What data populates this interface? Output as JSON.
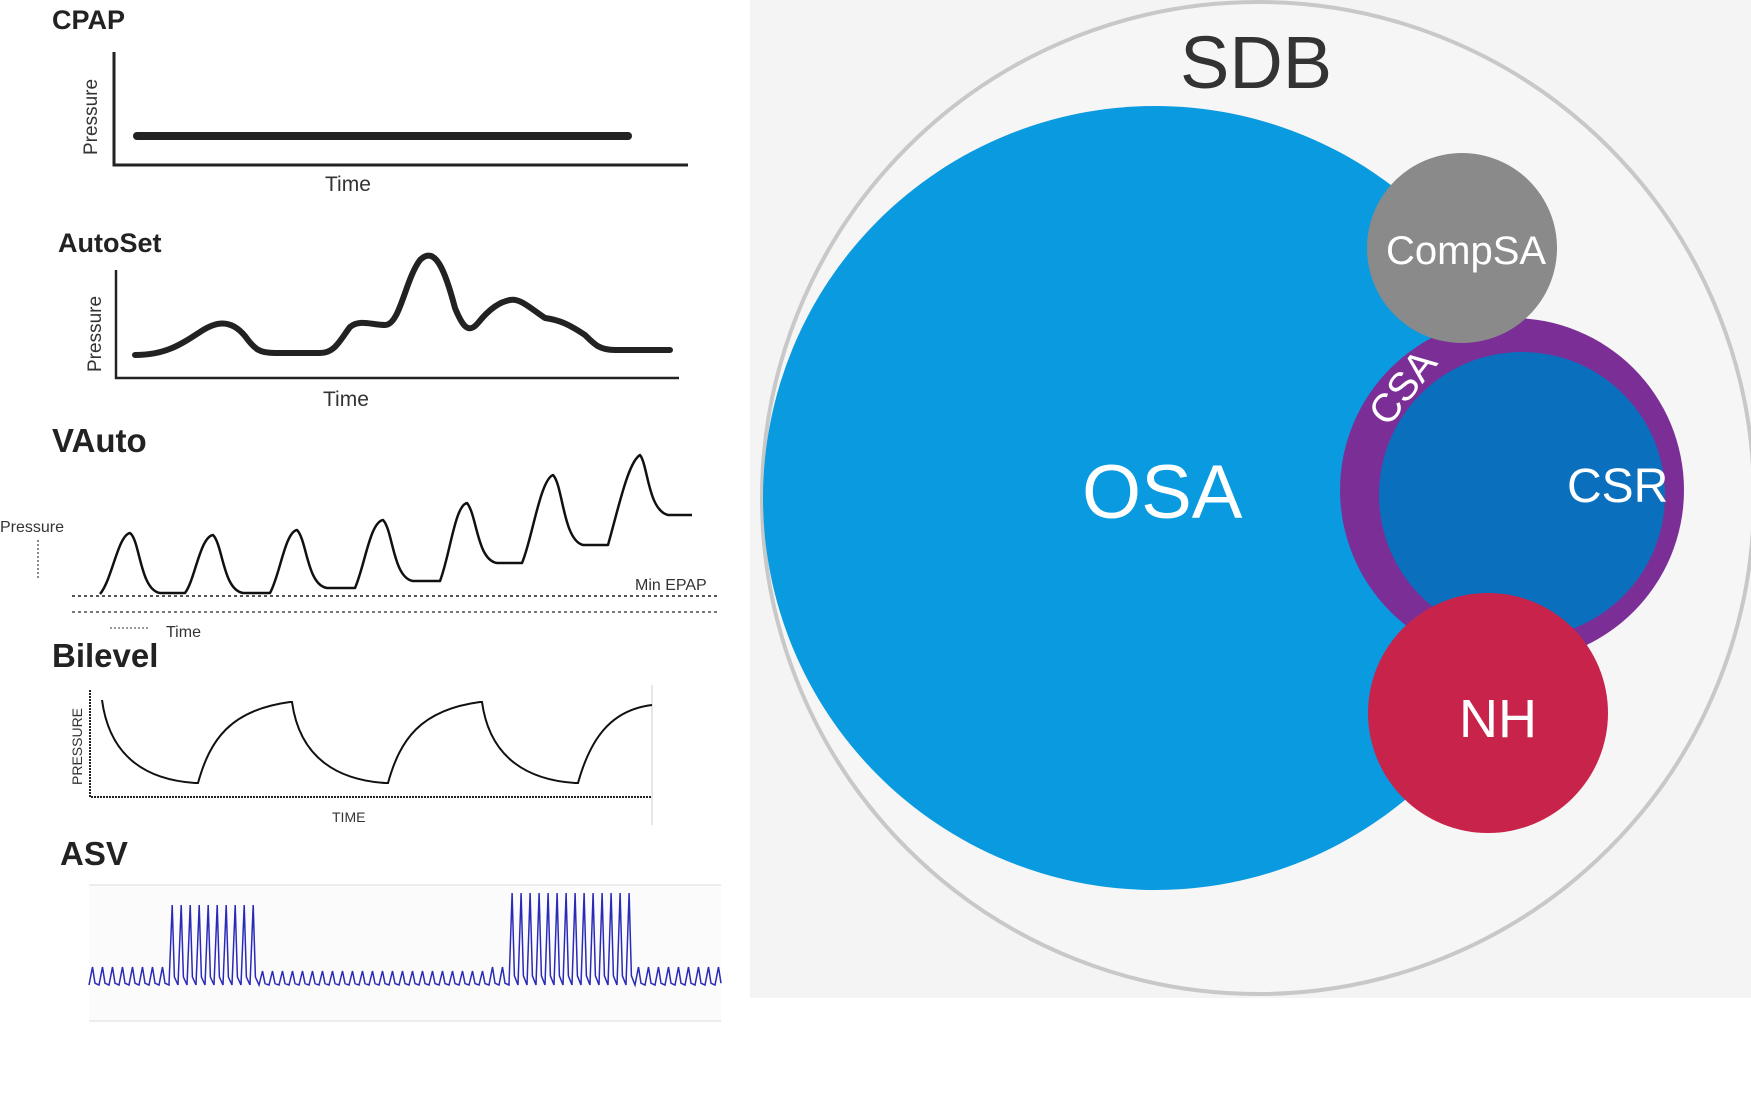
{
  "panels": [
    {
      "title": "CPAP",
      "ylabel": "Pressure",
      "xlabel": "Time"
    },
    {
      "title": "AutoSet",
      "ylabel": "Pressure",
      "xlabel": "Time"
    },
    {
      "title": "VAuto",
      "ylabel": "Pressure",
      "xlabel": "Time",
      "annotation": "Min EPAP"
    },
    {
      "title": "Bilevel",
      "ylabel": "PRESSURE",
      "xlabel": "TIME"
    },
    {
      "title": "ASV"
    }
  ],
  "venn": {
    "outer": {
      "label": "SDB",
      "color": "#f6f6f6",
      "stroke": "#c8c8c8"
    },
    "osa": {
      "label": "OSA",
      "color": "#0a9ae0"
    },
    "compsa": {
      "label": "CompSA",
      "color": "#8a8a8a"
    },
    "csa": {
      "label": "CSA",
      "color": "#7b2f96"
    },
    "csr": {
      "label": "CSR",
      "color": "#0a6fbd"
    },
    "nh": {
      "label": "NH",
      "color": "#c8234a"
    }
  },
  "colors": {
    "asv_line": "#2a2ab8",
    "trace": "#222222"
  }
}
